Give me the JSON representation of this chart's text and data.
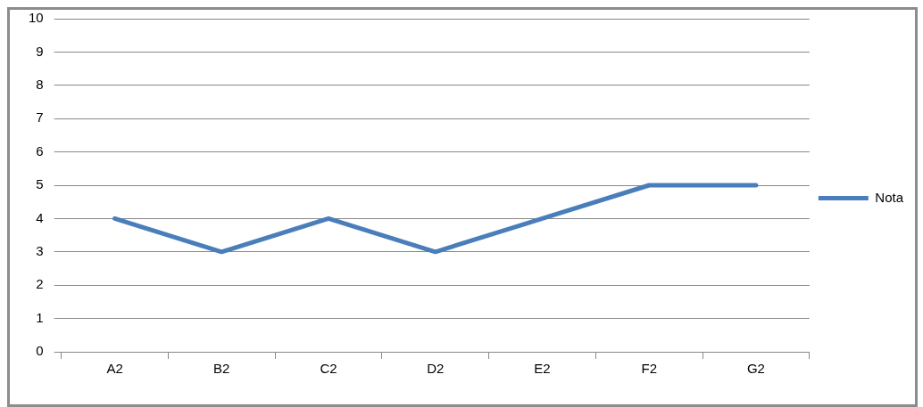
{
  "chart_data": {
    "type": "line",
    "categories": [
      "A2",
      "B2",
      "C2",
      "D2",
      "E2",
      "F2",
      "G2"
    ],
    "series": [
      {
        "name": "Nota",
        "color": "#4a7ebb",
        "values": [
          4,
          3,
          4,
          3,
          4,
          5,
          5
        ]
      }
    ],
    "ylim": [
      0,
      10
    ],
    "yticks": [
      0,
      1,
      2,
      3,
      4,
      5,
      6,
      7,
      8,
      9,
      10
    ],
    "grid": "y",
    "legend": "right",
    "marker": "none",
    "line_style": "solid"
  }
}
